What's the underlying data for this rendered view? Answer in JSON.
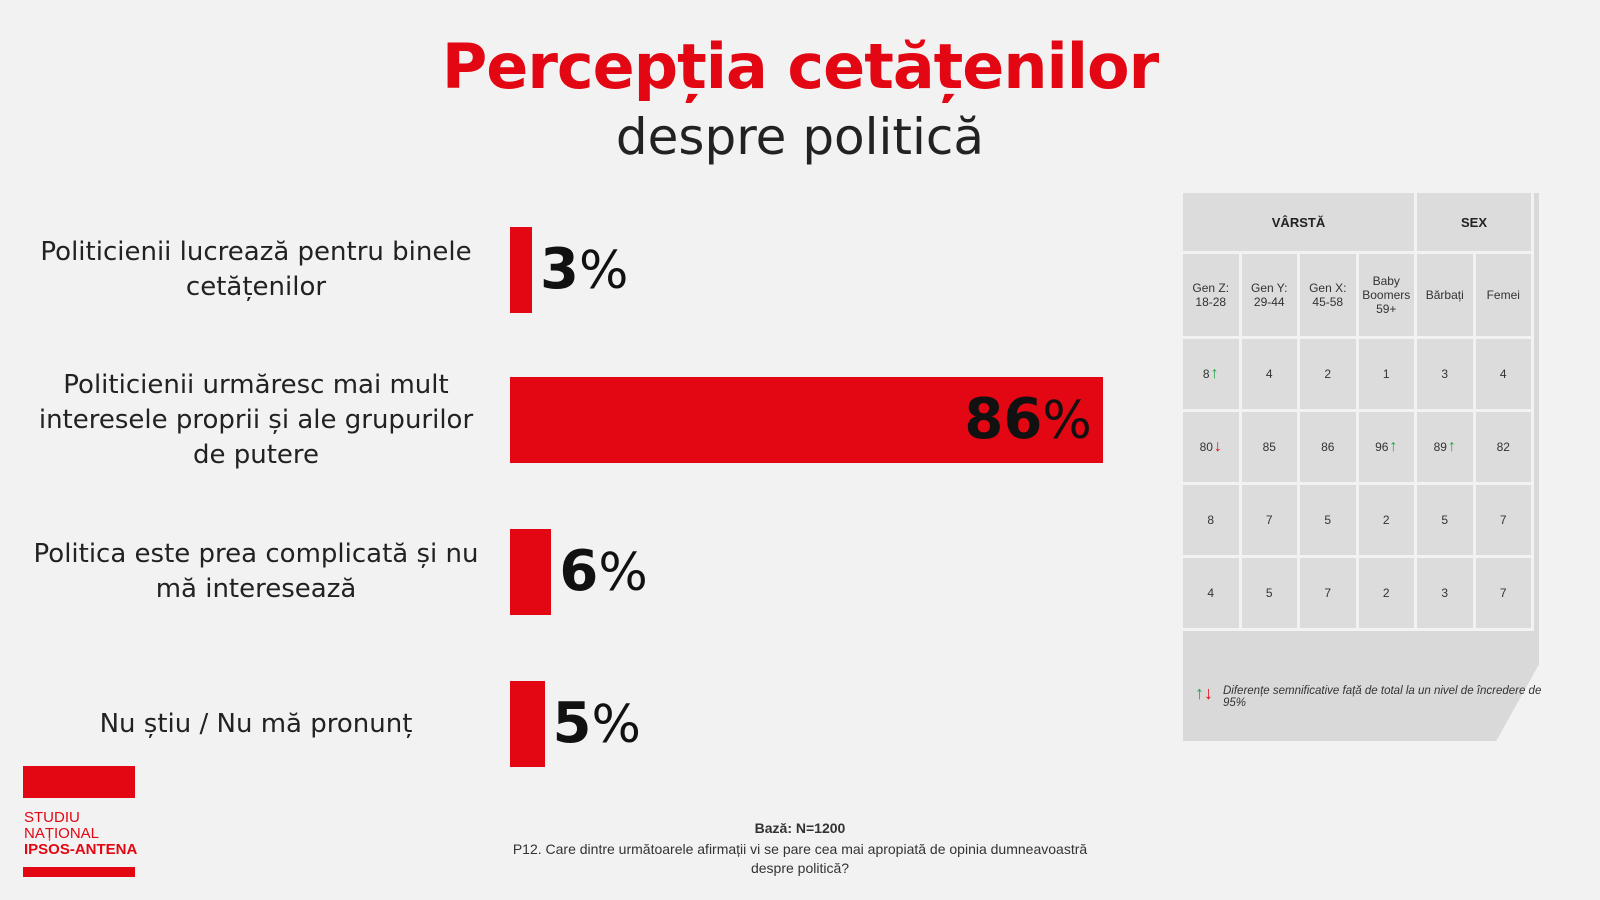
{
  "title": "Percepția cetățenilor",
  "subtitle": "despre politică",
  "chart_data": {
    "type": "bar",
    "orientation": "horizontal",
    "categories": [
      "Politicienii lucrează pentru binele cetățenilor",
      "Politicienii urmăresc mai mult interesele proprii și ale grupurilor de putere",
      "Politica este prea complicată și nu mă interesează",
      "Nu știu / Nu mă pronunț"
    ],
    "values": [
      3,
      86,
      6,
      5
    ],
    "labels": [
      "3",
      "86",
      "6",
      "5"
    ],
    "unit": "%",
    "color": "#e30613"
  },
  "table": {
    "group_headers": [
      "VÂRSTĂ",
      "SEX"
    ],
    "columns": [
      "Gen Z: 18-28",
      "Gen Y: 29-44",
      "Gen X: 45-58",
      "Baby Boomers 59+",
      "Bărbați",
      "Femei"
    ],
    "rows": [
      [
        {
          "v": "8",
          "sig": "up"
        },
        {
          "v": "4"
        },
        {
          "v": "2"
        },
        {
          "v": "1"
        },
        {
          "v": "3"
        },
        {
          "v": "4"
        }
      ],
      [
        {
          "v": "80",
          "sig": "down"
        },
        {
          "v": "85"
        },
        {
          "v": "86"
        },
        {
          "v": "96",
          "sig": "up"
        },
        {
          "v": "89",
          "sig": "up"
        },
        {
          "v": "82"
        }
      ],
      [
        {
          "v": "8"
        },
        {
          "v": "7"
        },
        {
          "v": "5"
        },
        {
          "v": "2"
        },
        {
          "v": "5"
        },
        {
          "v": "7"
        }
      ],
      [
        {
          "v": "4"
        },
        {
          "v": "5"
        },
        {
          "v": "7"
        },
        {
          "v": "2"
        },
        {
          "v": "3"
        },
        {
          "v": "7"
        }
      ]
    ],
    "legend": "Diferențe semnificative față de total la un nivel de încredere de 95%",
    "up_color": "#1aa34a",
    "down_color": "#e30613"
  },
  "logo": {
    "line1": "STUDIU",
    "line2": "NAȚIONAL",
    "line3": "IPSOS-ANTENA"
  },
  "footer": {
    "base": "Bază: N=1200",
    "question": "P12. Care dintre următoarele afirmații vi se pare cea mai apropiată de opinia dumneavoastră despre politică?"
  }
}
